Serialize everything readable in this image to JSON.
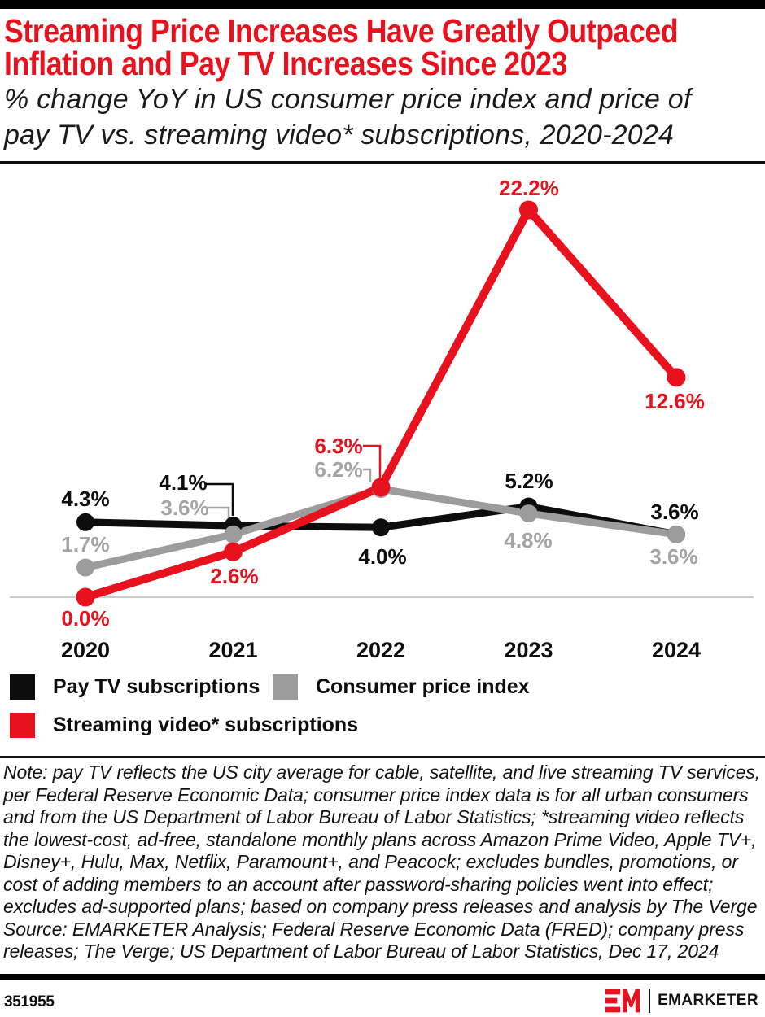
{
  "header": {
    "title_lines": [
      "Streaming Price Increases Have Greatly Outpaced",
      "Inflation and Pay TV Increases Since 2023"
    ],
    "subtitle_lines": [
      "% change YoY in US consumer price index and price of",
      "pay TV vs. streaming video* subscriptions, 2020-2024"
    ]
  },
  "chart_data": {
    "type": "line",
    "categories": [
      "2020",
      "2021",
      "2022",
      "2023",
      "2024"
    ],
    "series": [
      {
        "name": "Pay TV subscriptions",
        "color": "#0d0d0d",
        "values": [
          4.3,
          4.1,
          4.0,
          5.2,
          3.6
        ]
      },
      {
        "name": "Consumer price index",
        "color": "#9c9c9c",
        "values": [
          1.7,
          3.6,
          6.2,
          4.8,
          3.6
        ]
      },
      {
        "name": "Streaming video* subscriptions",
        "color": "#e8121f",
        "values": [
          0.0,
          2.6,
          6.3,
          22.2,
          12.6
        ]
      }
    ],
    "value_suffix": "%",
    "ylim": [
      0,
      24
    ],
    "grid": false,
    "baseline": 0,
    "legend_position": "bottom"
  },
  "colors": {
    "accent_red": "#e8121f",
    "pay_tv_black": "#0d0d0d",
    "cpi_gray": "#9c9c9c",
    "baseline_gray": "#cbcbcb"
  },
  "footnote": {
    "note": "Note: pay TV reflects the US city average for cable, satellite, and live streaming TV services, per Federal Reserve Economic Data; consumer price index data is for all urban consumers and from the US Department of Labor Bureau of Labor Statistics; *streaming video reflects the lowest-cost, ad-free, standalone monthly plans across Amazon Prime Video, Apple TV+, Disney+, Hulu, Max, Netflix, Paramount+, and Peacock; excludes bundles, promotions, or cost of adding members to an account after password-sharing policies went into effect; excludes ad-supported plans; based on company press releases and analysis by The Verge",
    "source": "Source: EMARKETER Analysis; Federal Reserve Economic Data (FRED); company press releases; The Verge; US Department of Labor Bureau of Labor Statistics, Dec 17, 2024"
  },
  "footer": {
    "chart_id": "351955",
    "brand_name": "EMARKETER",
    "logo_monogram": "EM"
  }
}
